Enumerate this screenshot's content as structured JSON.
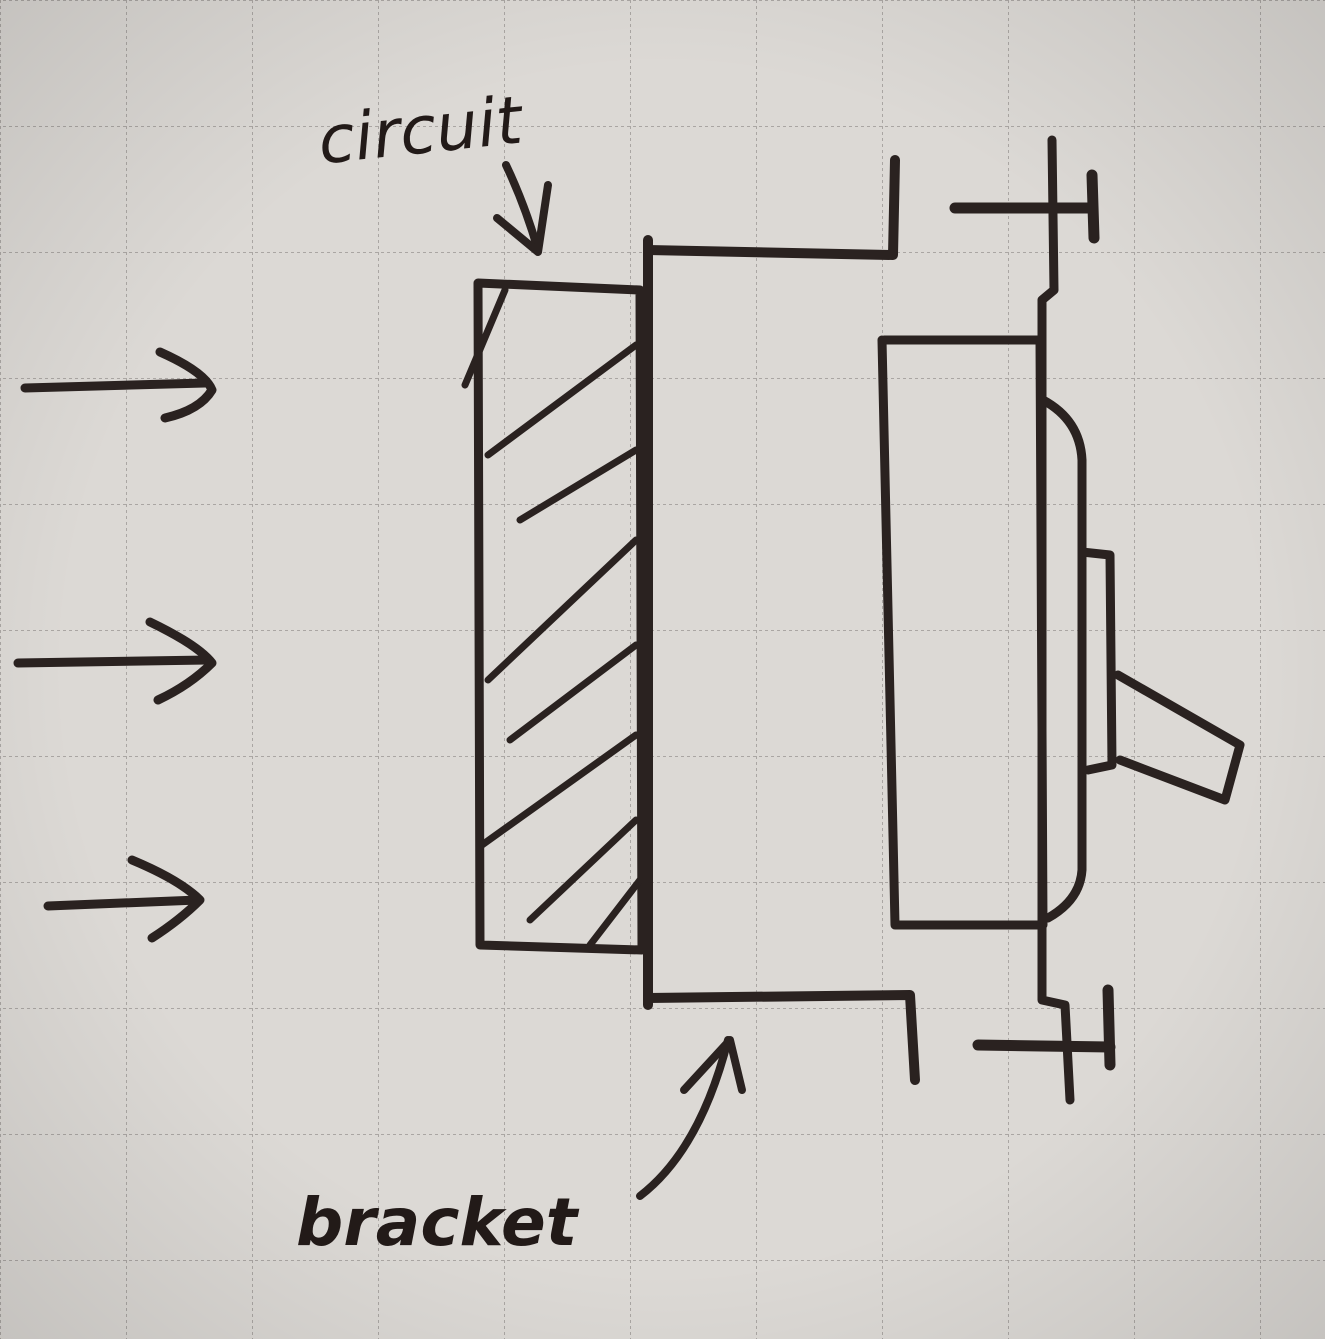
{
  "diagram": {
    "labels": {
      "circuit": "circuit",
      "bracket": "bracket"
    },
    "colors": {
      "paper": "#dcd9d5",
      "grid": "#a8a4a1",
      "ink": "#2a2220"
    }
  }
}
